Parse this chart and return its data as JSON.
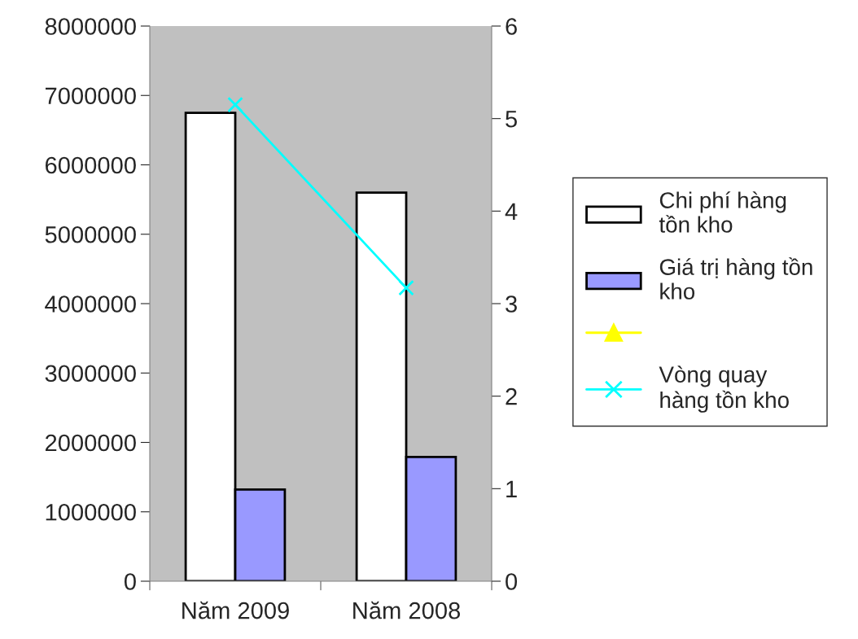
{
  "chart_data": {
    "type": "bar",
    "categories": [
      "Năm 2009",
      "Năm 2008"
    ],
    "series": [
      {
        "name": "Chi phí hàng\ntồn kho",
        "color": "#ffffff",
        "values": [
          6750000,
          5600000
        ]
      },
      {
        "name": "Giá trị hàng tồn\nkho",
        "color": "#9999ff",
        "values": [
          1320000,
          1790000
        ]
      },
      {
        "type": "line",
        "color": "#ffff00",
        "marker": "triangle",
        "axis": "y2",
        "values": [
          null,
          null
        ]
      },
      {
        "name": "Vòng quay\nhàng tồn kho",
        "type": "line",
        "color": "#00ffff",
        "marker": "cross",
        "axis": "y2",
        "values": [
          5.15,
          3.17
        ]
      }
    ],
    "ylim": [
      0,
      8000000
    ],
    "yticks": [
      0,
      1000000,
      2000000,
      3000000,
      4000000,
      5000000,
      6000000,
      7000000,
      8000000
    ],
    "y2lim": [
      0,
      6
    ],
    "y2ticks": [
      0,
      1,
      2,
      3,
      4,
      5,
      6
    ],
    "grid": false,
    "legend": "right"
  }
}
